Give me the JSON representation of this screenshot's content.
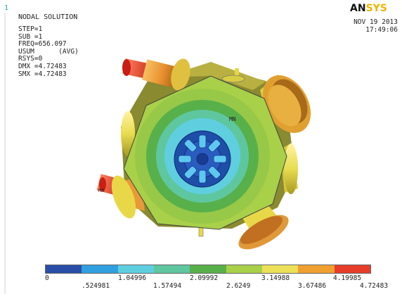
{
  "window": {
    "number": "1"
  },
  "header": {
    "title": "NODAL SOLUTION",
    "info": [
      "STEP=1",
      "SUB =1",
      "FREQ=656.097",
      "USUM      (AVG)",
      "RSYS=0",
      "DMX =4.72483",
      "SMX =4.72483"
    ],
    "date": "NOV 19 2013",
    "time": "17:49:06"
  },
  "logo": {
    "text_part1": "AN",
    "text_part2": "SYS"
  },
  "model": {
    "min_label": "MN",
    "max_label": "MX"
  },
  "legend": {
    "colors": [
      "#2a4ea8",
      "#2f9fe0",
      "#5fcfe0",
      "#5ec7a0",
      "#58b04a",
      "#a8d048",
      "#ece058",
      "#f0a030",
      "#e83c2a"
    ],
    "upper_ticks": [
      "0",
      "1.04996",
      "2.09992",
      "3.14988",
      "4.19985"
    ],
    "lower_ticks": [
      ".524981",
      "1.57494",
      "2.6249",
      "3.67486",
      "4.72483"
    ]
  }
}
